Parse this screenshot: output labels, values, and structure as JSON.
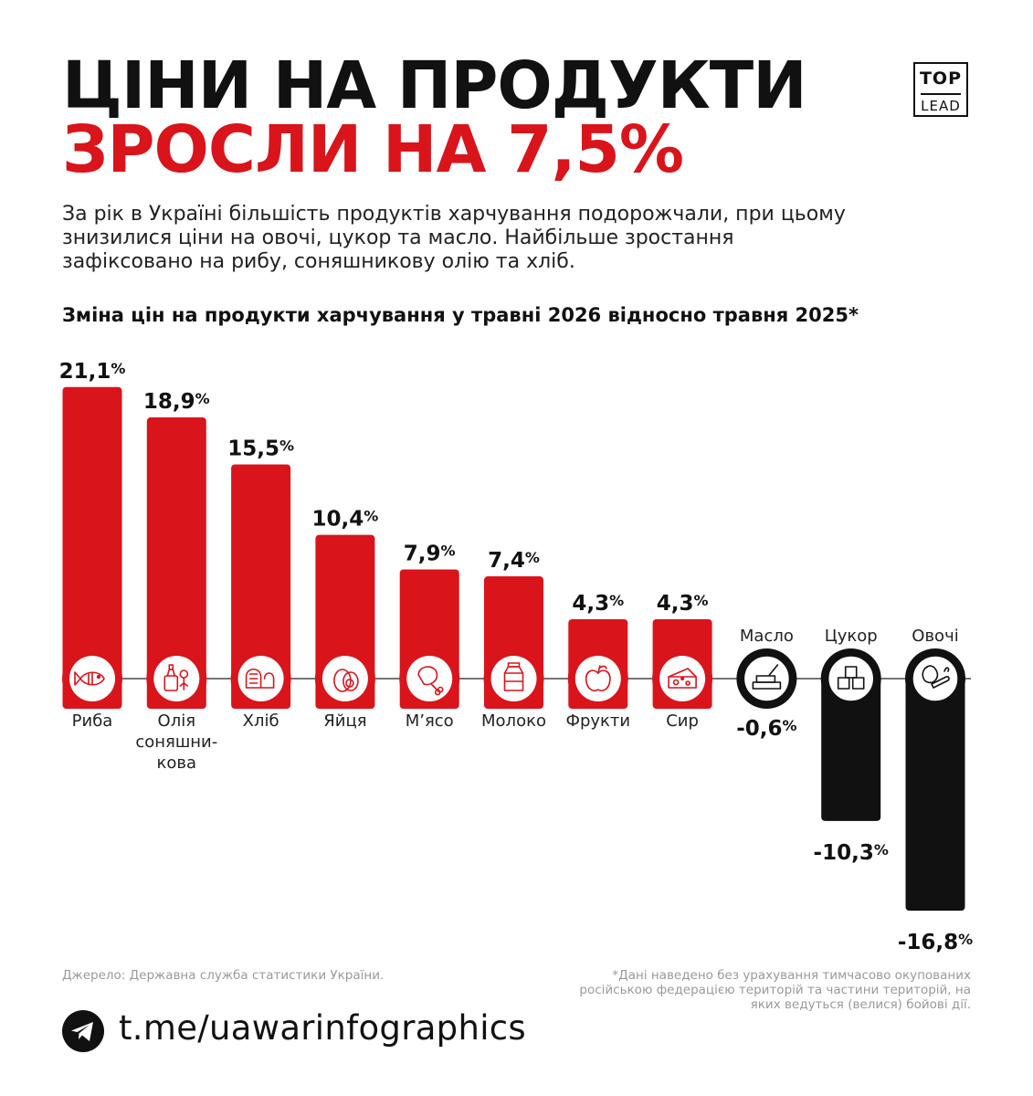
{
  "header": {
    "title_line1": "ЦІНИ НА ПРОДУКТИ",
    "title_line2": "ЗРОСЛИ НА 7,5%",
    "logo_top": "TOP",
    "logo_bottom": "LEAD"
  },
  "intro": "За рік в Україні більшість продуктів харчування подорожчали, при цьому знизилися ціни на овочі, цукор та масло. Найбільше зростання зафіксовано на рибу, соняшникову олію та хліб.",
  "colors": {
    "positive": "#d9141b",
    "negative": "#111111",
    "text": "#111111",
    "muted": "#9a9a9a"
  },
  "chart_data": {
    "type": "bar",
    "title": "Зміна цін на продукти харчування у травні 2026 відносно травня 2025*",
    "categories": [
      "Риба",
      "Олія соняшни-кова",
      "Хліб",
      "Яйця",
      "М’ясо",
      "Молоко",
      "Фрукти",
      "Сир",
      "Масло",
      "Цукор",
      "Овочі"
    ],
    "category_lines": [
      [
        "Риба"
      ],
      [
        "Олія",
        "соняшни-",
        "кова"
      ],
      [
        "Хліб"
      ],
      [
        "Яйця"
      ],
      [
        "М’ясо"
      ],
      [
        "Молоко"
      ],
      [
        "Фрукти"
      ],
      [
        "Сир"
      ],
      [
        "Масло"
      ],
      [
        "Цукор"
      ],
      [
        "Овочі"
      ]
    ],
    "values": [
      21.1,
      18.9,
      15.5,
      10.4,
      7.9,
      7.4,
      4.3,
      4.3,
      -0.6,
      -10.3,
      -16.8
    ],
    "value_labels": [
      "21,1",
      "18,9",
      "15,5",
      "10,4",
      "7,9",
      "7,4",
      "4,3",
      "4,3",
      "-0,6",
      "-10,3",
      "-16,8"
    ],
    "value_unit": "%",
    "icons": [
      "fish-icon",
      "oil-bottle-icon",
      "bread-icon",
      "eggs-icon",
      "meat-leg-icon",
      "milk-carton-icon",
      "apple-icon",
      "cheese-icon",
      "butter-icon",
      "sugar-cubes-icon",
      "vegetables-icon"
    ],
    "grid": false,
    "legend": "none"
  },
  "footer": {
    "source": "Джерело: Державна служба статистики України.",
    "note": "*Дані наведено без урахування тимчасово окупованих російською федерацією територій та частини територій, на яких ведуться (велися) бойові дії.",
    "link": "t.me/uawarinfographics",
    "link_icon": "telegram-icon"
  }
}
